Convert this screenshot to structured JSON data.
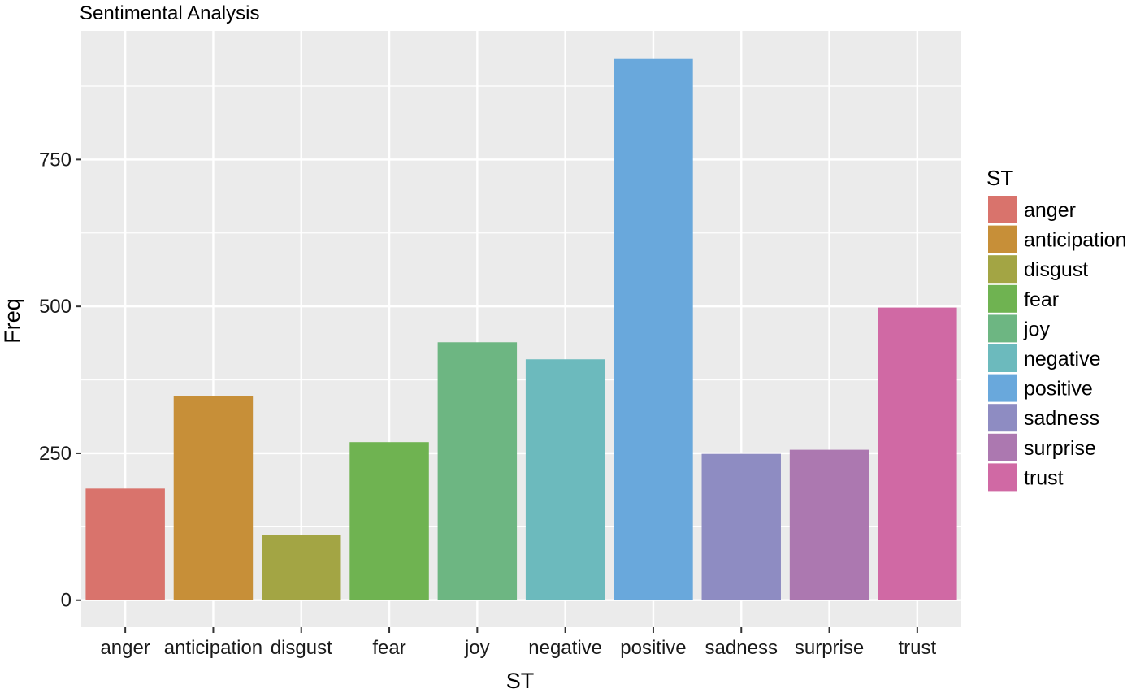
{
  "chart_data": {
    "type": "bar",
    "title": "Sentimental Analysis",
    "xlabel": "ST",
    "ylabel": "Freq",
    "categories": [
      "anger",
      "anticipation",
      "disgust",
      "fear",
      "joy",
      "negative",
      "positive",
      "sadness",
      "surprise",
      "trust"
    ],
    "values": [
      190,
      347,
      111,
      269,
      439,
      410,
      921,
      249,
      256,
      498
    ],
    "colors": [
      "#D9736C",
      "#C78F38",
      "#A3A544",
      "#6FB351",
      "#6DB682",
      "#6CBABD",
      "#69A8DC",
      "#8E8CC2",
      "#AC78B0",
      "#D069A4"
    ],
    "ylim": [
      -46,
      969
    ],
    "yticks": [
      0,
      250,
      500,
      750
    ],
    "grid": true,
    "legend": {
      "title": "ST",
      "position": "right",
      "entries": [
        "anger",
        "anticipation",
        "disgust",
        "fear",
        "joy",
        "negative",
        "positive",
        "sadness",
        "surprise",
        "trust"
      ]
    }
  }
}
